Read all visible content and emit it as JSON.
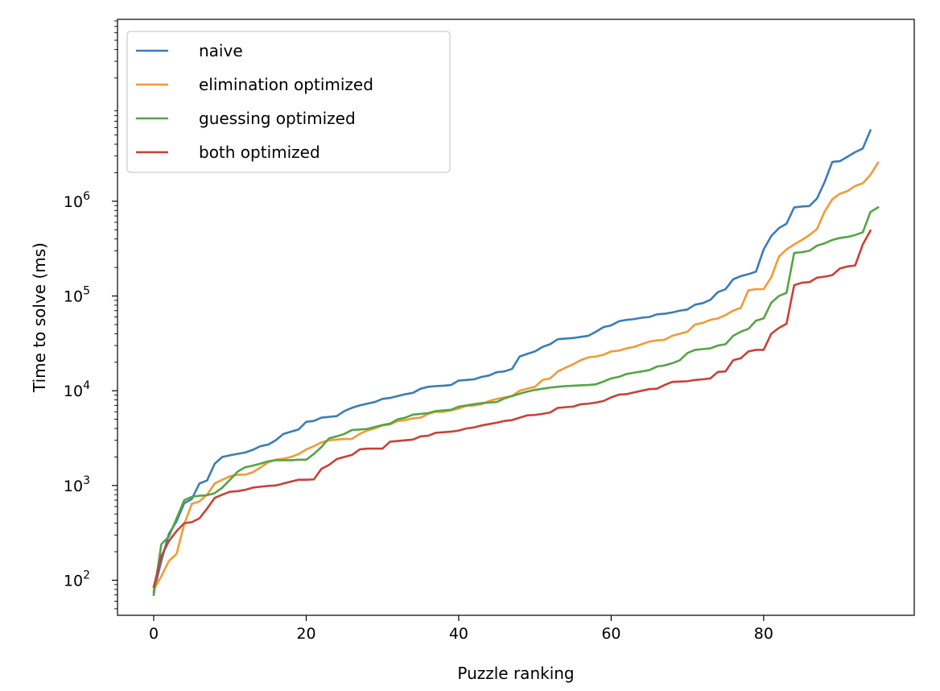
{
  "chart_data": {
    "type": "line",
    "title": "",
    "xlabel": "Puzzle ranking",
    "ylabel": "Time to solve (ms)",
    "xlim": [
      -4.75,
      99.75
    ],
    "ylim_log10": [
      1.63,
      7.92
    ],
    "y_scale": "log",
    "x_ticks": [
      0,
      20,
      40,
      60,
      80
    ],
    "y_ticks": [
      {
        "value": 100,
        "label": "10",
        "exp": "2"
      },
      {
        "value": 1000,
        "label": "10",
        "exp": "3"
      },
      {
        "value": 10000,
        "label": "10",
        "exp": "4"
      },
      {
        "value": 100000,
        "label": "10",
        "exp": "5"
      },
      {
        "value": 1000000,
        "label": "10",
        "exp": "6"
      }
    ],
    "grid": false,
    "legend_position": "upper-left",
    "series": [
      {
        "name": "naive",
        "color": "#3a7db8",
        "values": [
          75,
          160,
          310,
          420,
          650,
          720,
          1050,
          1130,
          1700,
          2000,
          2080,
          2160,
          2230,
          2380,
          2600,
          2700,
          3000,
          3500,
          3700,
          3900,
          4700,
          4800,
          5200,
          5300,
          5400,
          6100,
          6600,
          7000,
          7300,
          7600,
          8200,
          8400,
          8800,
          9200,
          9500,
          10500,
          11000,
          11200,
          11300,
          11500,
          12800,
          13000,
          13200,
          14000,
          14500,
          15700,
          16000,
          17000,
          23000,
          24500,
          26000,
          29000,
          31000,
          35000,
          35500,
          36000,
          37000,
          38000,
          42000,
          47000,
          49000,
          54000,
          56000,
          57000,
          59000,
          60000,
          64000,
          65000,
          67000,
          70000,
          72000,
          81000,
          84000,
          91000,
          110000,
          118000,
          150000,
          162000,
          170000,
          181000,
          310000,
          430000,
          520000,
          580000,
          860000,
          880000,
          890000,
          1070000,
          1600000,
          2600000,
          2650000,
          2950000,
          3300000,
          3600000,
          5600000
        ]
      },
      {
        "name": "elimination optimized",
        "color": "#f39a36",
        "values": [
          80,
          110,
          160,
          190,
          390,
          640,
          680,
          800,
          1050,
          1150,
          1250,
          1300,
          1300,
          1380,
          1550,
          1750,
          1870,
          1920,
          2000,
          2150,
          2400,
          2600,
          2850,
          3000,
          3050,
          3100,
          3100,
          3500,
          3800,
          4000,
          4300,
          4400,
          4800,
          4900,
          5100,
          5200,
          5700,
          6000,
          6000,
          6200,
          6500,
          6900,
          7000,
          7200,
          7800,
          8200,
          8500,
          8800,
          10000,
          10500,
          11000,
          13000,
          13500,
          16000,
          17500,
          19000,
          21000,
          22500,
          23000,
          24000,
          26000,
          26500,
          28000,
          29000,
          31000,
          33000,
          34000,
          34500,
          38000,
          40000,
          42000,
          50000,
          52000,
          56000,
          58000,
          63000,
          70000,
          75000,
          115000,
          118000,
          118000,
          158000,
          260000,
          310000,
          350000,
          390000,
          440000,
          510000,
          780000,
          1050000,
          1200000,
          1280000,
          1450000,
          1550000,
          1900000,
          2550000
        ]
      },
      {
        "name": "guessing optimized",
        "color": "#54a544",
        "values": [
          70,
          240,
          290,
          450,
          700,
          760,
          780,
          790,
          830,
          950,
          1150,
          1400,
          1560,
          1620,
          1700,
          1800,
          1850,
          1850,
          1850,
          1870,
          1870,
          2150,
          2550,
          3150,
          3300,
          3500,
          3850,
          3900,
          3950,
          4150,
          4350,
          4500,
          5000,
          5200,
          5600,
          5700,
          5800,
          6100,
          6200,
          6300,
          6800,
          7000,
          7200,
          7400,
          7500,
          7600,
          8300,
          8800,
          9300,
          9800,
          10200,
          10500,
          10800,
          11000,
          11200,
          11300,
          11400,
          11500,
          11700,
          12500,
          13500,
          14000,
          15000,
          15500,
          16000,
          16500,
          18000,
          18500,
          19500,
          21000,
          25000,
          27000,
          27500,
          28000,
          30000,
          31000,
          38000,
          42000,
          45000,
          55000,
          58000,
          85000,
          100000,
          108000,
          285000,
          290000,
          300000,
          340000,
          360000,
          390000,
          410000,
          420000,
          440000,
          470000,
          770000,
          860000
        ]
      },
      {
        "name": "both optimized",
        "color": "#c94136",
        "values": [
          85,
          180,
          260,
          330,
          400,
          410,
          450,
          570,
          740,
          800,
          860,
          870,
          900,
          950,
          970,
          990,
          1000,
          1050,
          1100,
          1150,
          1150,
          1160,
          1500,
          1650,
          1900,
          2000,
          2100,
          2400,
          2450,
          2450,
          2450,
          2900,
          2950,
          3000,
          3050,
          3300,
          3350,
          3600,
          3650,
          3700,
          3800,
          4000,
          4100,
          4300,
          4450,
          4600,
          4800,
          4900,
          5200,
          5500,
          5550,
          5700,
          5900,
          6600,
          6700,
          6800,
          7200,
          7300,
          7500,
          7800,
          8500,
          9100,
          9200,
          9600,
          10000,
          10400,
          10500,
          11500,
          12400,
          12500,
          12600,
          13000,
          13200,
          13500,
          15800,
          16000,
          21000,
          22000,
          26000,
          27000,
          27000,
          40000,
          46000,
          51000,
          130000,
          138000,
          140000,
          156000,
          160000,
          166000,
          195000,
          205000,
          210000,
          350000,
          490000
        ]
      }
    ]
  }
}
